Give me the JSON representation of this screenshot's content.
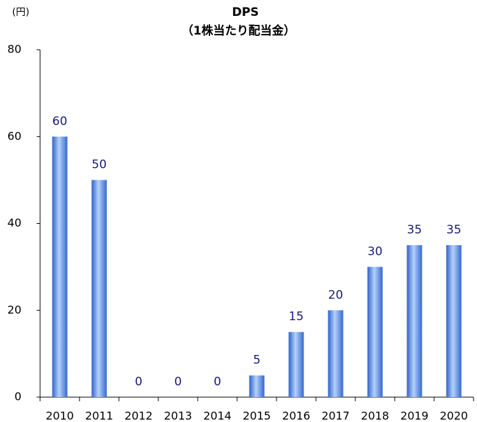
{
  "chart_data": {
    "type": "bar",
    "title": "DPS",
    "subtitle": "（1株当たり配当金）",
    "y_label": "(円)",
    "categories": [
      "2010",
      "2011",
      "2012",
      "2013",
      "2014",
      "2015",
      "2016",
      "2017",
      "2018",
      "2019",
      "2020"
    ],
    "values": [
      60,
      50,
      0,
      0,
      0,
      5,
      15,
      20,
      30,
      35,
      35
    ],
    "color": "#3d74dc",
    "ylim": [
      0,
      80
    ],
    "yticks": [
      0,
      20,
      40,
      60,
      80
    ],
    "grid": false
  }
}
